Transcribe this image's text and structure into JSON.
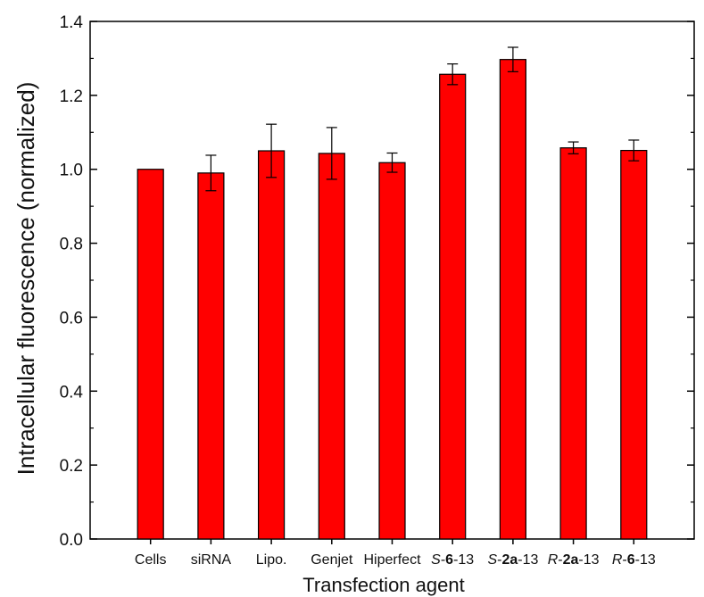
{
  "chart_data": {
    "type": "bar",
    "xlabel": "Transfection agent",
    "ylabel": "Intracellular fluorescence (normalized)",
    "ylim": [
      0.0,
      1.4
    ],
    "yticks": [
      "0.0",
      "0.2",
      "0.4",
      "0.6",
      "0.8",
      "1.0",
      "1.2",
      "1.4"
    ],
    "categories": [
      {
        "prefix": "",
        "bold": "",
        "suffix": "Cells"
      },
      {
        "prefix": "",
        "bold": "",
        "suffix": "siRNA"
      },
      {
        "prefix": "",
        "bold": "",
        "suffix": "Lipo."
      },
      {
        "prefix": "",
        "bold": "",
        "suffix": "Genjet"
      },
      {
        "prefix": "",
        "bold": "",
        "suffix": "Hiperfect"
      },
      {
        "prefix": "S-",
        "bold": "6",
        "suffix": "-13"
      },
      {
        "prefix": "S-",
        "bold": "2a",
        "suffix": "-13"
      },
      {
        "prefix": "R-",
        "bold": "2a",
        "suffix": "-13"
      },
      {
        "prefix": "R-",
        "bold": "6",
        "suffix": "-13"
      }
    ],
    "values": [
      1.0,
      0.99,
      1.05,
      1.043,
      1.018,
      1.257,
      1.297,
      1.058,
      1.051
    ],
    "errors": [
      0.0,
      0.048,
      0.072,
      0.07,
      0.026,
      0.028,
      0.033,
      0.016,
      0.028
    ],
    "bar_color": "#ff0000",
    "grid": false,
    "legend": "none"
  }
}
